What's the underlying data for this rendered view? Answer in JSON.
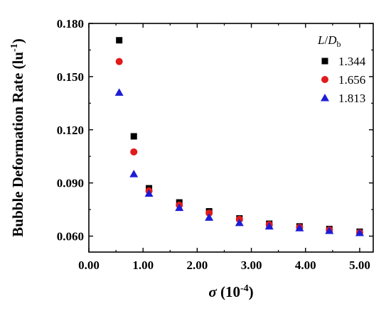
{
  "chart_data": {
    "type": "scatter",
    "xlabel_symbol": "σ",
    "xlabel_unit": " (10",
    "xlabel_exp": "-4",
    "xlabel_close": ")",
    "ylabel_main": "Bubble Deformation Rate (lu",
    "ylabel_exp": "-1",
    "ylabel_close": ")",
    "xlim": [
      0,
      5.25
    ],
    "ylim": [
      0.051,
      0.18
    ],
    "x_ticks": [
      "0.00",
      "1.00",
      "2.00",
      "3.00",
      "4.00",
      "5.00"
    ],
    "x_tick_values": [
      0,
      1,
      2,
      3,
      4,
      5
    ],
    "y_ticks": [
      "0.060",
      "0.090",
      "0.120",
      "0.150",
      "0.180"
    ],
    "y_tick_values": [
      0.06,
      0.09,
      0.12,
      0.15,
      0.18
    ],
    "legend_title_main": "L",
    "legend_title_sep": "/",
    "legend_title_D": "D",
    "legend_title_sub": "b",
    "legend_position": "top-right",
    "series": [
      {
        "name": "1.344",
        "marker": "square",
        "color": "#000000",
        "x": [
          0.56,
          0.83,
          1.11,
          1.67,
          2.22,
          2.78,
          3.33,
          3.89,
          4.44,
          5.0
        ],
        "y": [
          0.1705,
          0.1163,
          0.087,
          0.079,
          0.074,
          0.07,
          0.067,
          0.0655,
          0.064,
          0.0625
        ]
      },
      {
        "name": "1.656",
        "marker": "circle",
        "color": "#e01b1b",
        "x": [
          0.56,
          0.83,
          1.11,
          1.67,
          2.22,
          2.78,
          3.33,
          3.89,
          4.44,
          5.0
        ],
        "y": [
          0.1585,
          0.1075,
          0.0855,
          0.0775,
          0.073,
          0.0695,
          0.0665,
          0.065,
          0.0635,
          0.062
        ]
      },
      {
        "name": "1.813",
        "marker": "triangle",
        "color": "#1d1dd6",
        "x": [
          0.56,
          0.83,
          1.11,
          1.67,
          2.22,
          2.78,
          3.33,
          3.89,
          4.44,
          5.0
        ],
        "y": [
          0.141,
          0.095,
          0.084,
          0.076,
          0.0705,
          0.0675,
          0.0655,
          0.0645,
          0.063,
          0.0618
        ]
      }
    ]
  }
}
